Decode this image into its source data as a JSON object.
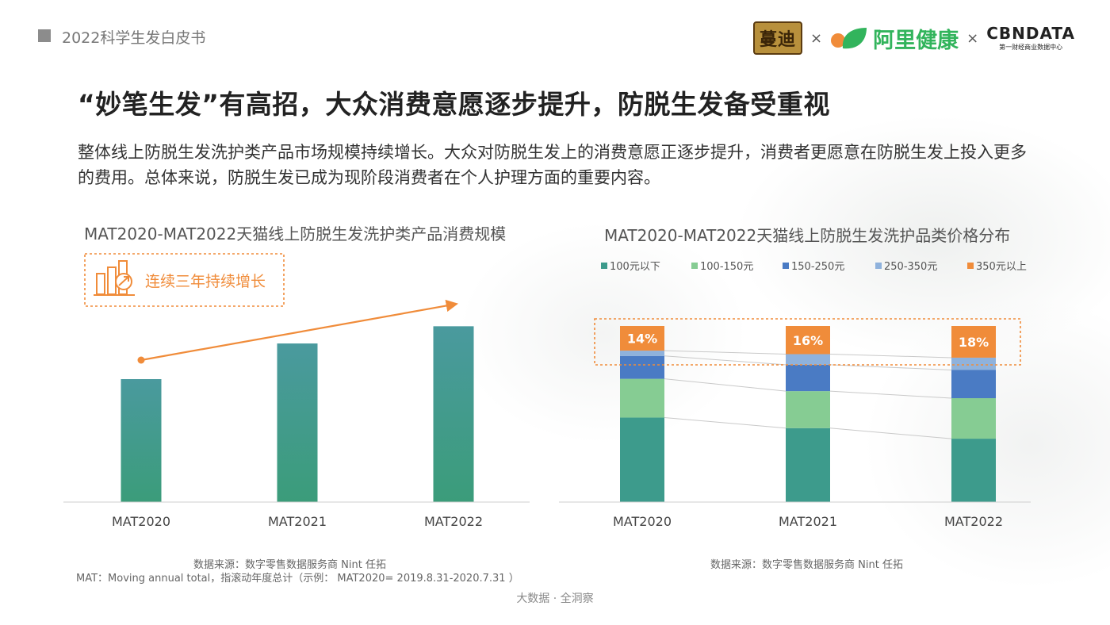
{
  "header": {
    "report_title": "2022科学生发白皮书",
    "logo_mandi": "蔓迪",
    "separator": "×",
    "logo_ali": "阿里健康",
    "logo_cbn": "CBNDATA",
    "logo_cbn_sub": "第一财经商业数据中心"
  },
  "headline": "“妙笔生发”有高招，大众消费意愿逐步提升，防脱生发备受重视",
  "description": "整体线上防脱生发洗护类产品市场规模持续增长。大众对防脱生发上的消费意愿正逐步提升，消费者更愿意在防脱生发上投入更多的费用。总体来说，防脱生发已成为现阶段消费者在个人护理方面的重要内容。",
  "left_chart": {
    "source_line1": "数据来源：数字零售数据服务商 Nint 任拓",
    "source_line2": "MAT：Moving annual total，指滚动年度总计（示例： MAT2020= 2019.8.31-2020.7.31 ）"
  },
  "right_chart": {
    "source": "数据来源：数字零售数据服务商 Nint 任拓"
  },
  "footer": "大数据 · 全洞察",
  "chart_data": [
    {
      "type": "bar",
      "title": "MAT2020-MAT2022天猫线上防脱生发洗护类产品消费规模",
      "categories": [
        "MAT2020",
        "MAT2021",
        "MAT2022"
      ],
      "values": [
        100,
        129,
        143
      ],
      "value_unit": "relative (no axis shown)",
      "ylim": [
        0,
        160
      ],
      "annotation": "连续三年持续增长",
      "colors": {
        "bar_top": "#4a9a9e",
        "bar_bottom": "#3b9c7a",
        "arrow": "#f08c3a"
      }
    },
    {
      "type": "bar",
      "stacked": true,
      "title": "MAT2020-MAT2022天猫线上防脱生发洗护品类价格分布",
      "categories": [
        "MAT2020",
        "MAT2021",
        "MAT2022"
      ],
      "series": [
        {
          "name": "100元以下",
          "color": "#3d9b8c",
          "values": [
            48,
            42,
            36
          ]
        },
        {
          "name": "100-150元",
          "color": "#86cc93",
          "values": [
            22,
            21,
            23
          ]
        },
        {
          "name": "150-250元",
          "color": "#4a7bc4",
          "values": [
            13,
            15,
            16
          ]
        },
        {
          "name": "250-350元",
          "color": "#8fb2dc",
          "values": [
            3,
            6,
            7
          ]
        },
        {
          "name": "350元以上",
          "color": "#f08c3a",
          "values": [
            14,
            16,
            18
          ]
        }
      ],
      "data_labels": [
        "14%",
        "16%",
        "18%"
      ],
      "ylim": [
        0,
        100
      ]
    }
  ]
}
